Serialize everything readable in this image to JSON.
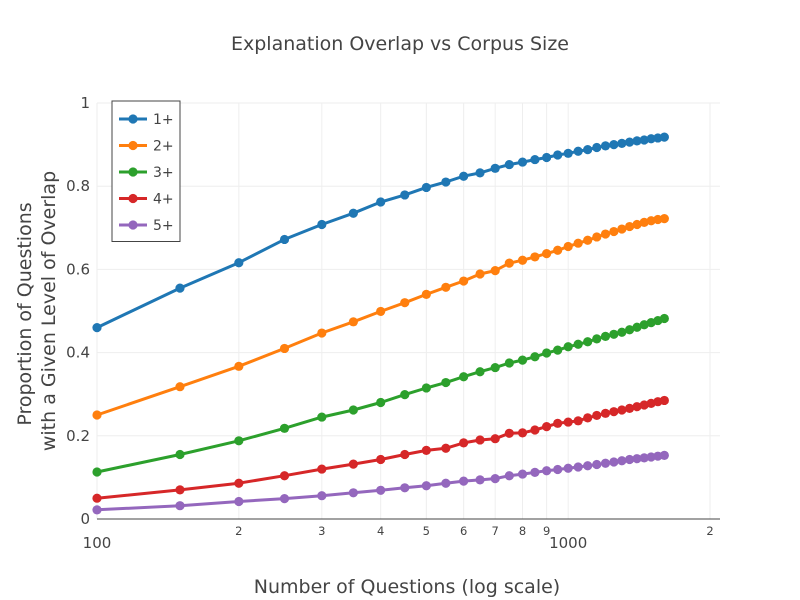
{
  "chart_data": {
    "type": "line",
    "title": "Explanation Overlap vs Corpus Size",
    "xlabel": "Number of Questions (log scale)",
    "ylabel_line1": "Proportion of Questions",
    "ylabel_line2": "with a Given Level of Overlap",
    "x_scale": "log",
    "xlim": [
      100,
      2100
    ],
    "ylim": [
      0,
      1
    ],
    "grid": true,
    "legend_position": "top-left",
    "x_major_ticks": [
      {
        "value": 100,
        "label": "100"
      },
      {
        "value": 1000,
        "label": "1000"
      }
    ],
    "x_minor_ticks": [
      {
        "value": 200,
        "label": "2"
      },
      {
        "value": 300,
        "label": "3"
      },
      {
        "value": 400,
        "label": "4"
      },
      {
        "value": 500,
        "label": "5"
      },
      {
        "value": 600,
        "label": "6"
      },
      {
        "value": 700,
        "label": "7"
      },
      {
        "value": 800,
        "label": "8"
      },
      {
        "value": 900,
        "label": "9"
      },
      {
        "value": 2000,
        "label": "2"
      }
    ],
    "y_ticks": [
      {
        "value": 0,
        "label": "0"
      },
      {
        "value": 0.2,
        "label": "0.2"
      },
      {
        "value": 0.4,
        "label": "0.4"
      },
      {
        "value": 0.6,
        "label": "0.6"
      },
      {
        "value": 0.8,
        "label": "0.8"
      },
      {
        "value": 1,
        "label": "1"
      }
    ],
    "x": [
      100,
      150,
      200,
      250,
      300,
      350,
      400,
      450,
      500,
      550,
      600,
      650,
      700,
      750,
      800,
      850,
      900,
      950,
      1000,
      1050,
      1100,
      1150,
      1200,
      1250,
      1300,
      1350,
      1400,
      1450,
      1500,
      1550,
      1600
    ],
    "series": [
      {
        "name": "1+",
        "color": "#1f77b4",
        "values": [
          0.46,
          0.555,
          0.616,
          0.672,
          0.708,
          0.735,
          0.762,
          0.779,
          0.797,
          0.81,
          0.824,
          0.832,
          0.843,
          0.852,
          0.858,
          0.864,
          0.869,
          0.875,
          0.879,
          0.884,
          0.888,
          0.893,
          0.897,
          0.9,
          0.903,
          0.906,
          0.909,
          0.911,
          0.914,
          0.916,
          0.918
        ]
      },
      {
        "name": "2+",
        "color": "#ff7f0e",
        "values": [
          0.25,
          0.318,
          0.367,
          0.41,
          0.447,
          0.474,
          0.499,
          0.52,
          0.54,
          0.557,
          0.572,
          0.589,
          0.597,
          0.615,
          0.622,
          0.63,
          0.638,
          0.646,
          0.655,
          0.663,
          0.67,
          0.678,
          0.685,
          0.691,
          0.697,
          0.703,
          0.708,
          0.713,
          0.717,
          0.72,
          0.722
        ]
      },
      {
        "name": "3+",
        "color": "#2ca02c",
        "values": [
          0.113,
          0.155,
          0.188,
          0.218,
          0.245,
          0.262,
          0.28,
          0.299,
          0.315,
          0.328,
          0.342,
          0.354,
          0.364,
          0.375,
          0.382,
          0.39,
          0.399,
          0.406,
          0.414,
          0.42,
          0.426,
          0.433,
          0.439,
          0.444,
          0.449,
          0.455,
          0.461,
          0.467,
          0.472,
          0.477,
          0.482
        ]
      },
      {
        "name": "4+",
        "color": "#d62728",
        "values": [
          0.05,
          0.07,
          0.086,
          0.104,
          0.12,
          0.132,
          0.143,
          0.155,
          0.165,
          0.17,
          0.183,
          0.19,
          0.193,
          0.206,
          0.207,
          0.214,
          0.222,
          0.23,
          0.233,
          0.236,
          0.243,
          0.249,
          0.254,
          0.258,
          0.262,
          0.266,
          0.27,
          0.274,
          0.278,
          0.282,
          0.285
        ]
      },
      {
        "name": "5+",
        "color": "#9467bd",
        "values": [
          0.022,
          0.032,
          0.042,
          0.049,
          0.056,
          0.063,
          0.069,
          0.075,
          0.08,
          0.086,
          0.091,
          0.094,
          0.097,
          0.104,
          0.108,
          0.112,
          0.116,
          0.119,
          0.122,
          0.125,
          0.128,
          0.131,
          0.134,
          0.137,
          0.14,
          0.143,
          0.145,
          0.147,
          0.149,
          0.151,
          0.153
        ]
      }
    ]
  }
}
